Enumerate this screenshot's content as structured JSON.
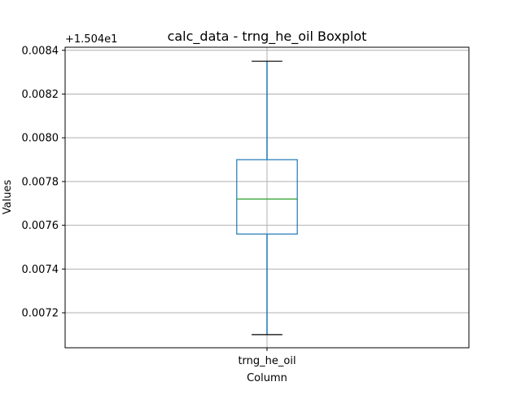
{
  "chart_data": {
    "type": "box",
    "title": "calc_data - trng_he_oil Boxplot",
    "xlabel": "Column",
    "ylabel": "Values",
    "offset_label": "+1.504e1",
    "categories": [
      "trng_he_oil"
    ],
    "boxes": [
      {
        "name": "trng_he_oil",
        "whisker_low": 0.0071,
        "q1": 0.00756,
        "median": 0.00772,
        "q3": 0.0079,
        "whisker_high": 0.00835
      }
    ],
    "y_ticks": [
      0.0072,
      0.0074,
      0.0076,
      0.0078,
      0.008,
      0.0082,
      0.0084
    ],
    "y_tick_labels": [
      "0.0072",
      "0.0074",
      "0.0076",
      "0.0078",
      "0.0080",
      "0.0082",
      "0.0084"
    ],
    "ylim": [
      0.00704,
      0.008414
    ],
    "grid": true,
    "colors": {
      "box": "#1f77b4",
      "whisker": "#1f77b4",
      "cap": "#000000",
      "median": "#2ca02c",
      "grid": "#b0b0b0"
    }
  }
}
